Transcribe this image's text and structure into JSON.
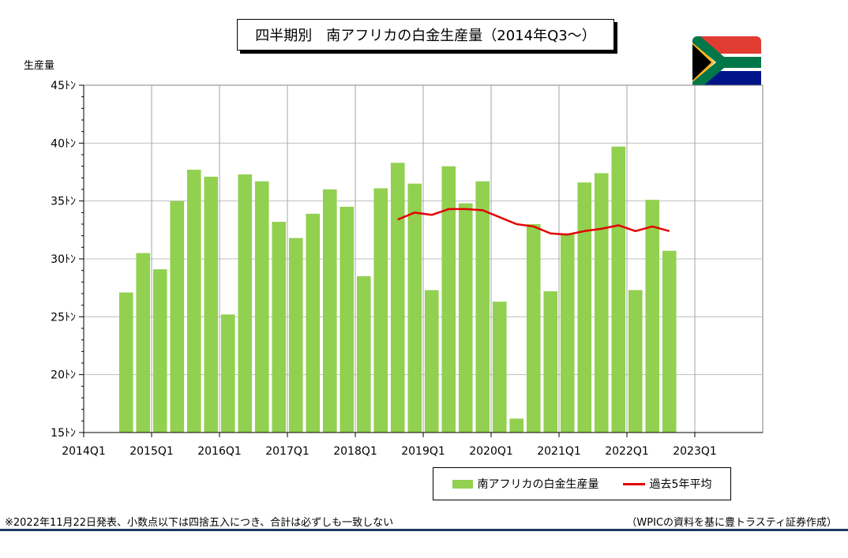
{
  "title": "四半期別　南アフリカの白金生産量（2014年Q3～）",
  "y_unit_label": "生産量",
  "legend": {
    "bar_label": "南アフリカの白金生産量",
    "line_label": "過去5年平均"
  },
  "footnote_left": "※2022年11月22日発表、小数点以下は四捨五入につき、合計は必ずしも一致しない",
  "footnote_right": "（WPICの資料を基に豊トラスティ証券作成）",
  "flag_icon": "south-africa-flag-icon",
  "colors": {
    "bar": "#92d050",
    "line": "#e30000",
    "grid": "#bfbfbf",
    "rule": "#1f3864"
  },
  "chart_data": {
    "type": "bar",
    "title": "四半期別　南アフリカの白金生産量（2014年Q3～）",
    "ylabel": "生産量",
    "y_unit": "ﾄﾝ",
    "ylim": [
      15,
      45
    ],
    "yticks": [
      15,
      20,
      25,
      30,
      35,
      40,
      45
    ],
    "ytick_labels": [
      "15ﾄﾝ",
      "20ﾄﾝ",
      "25ﾄﾝ",
      "30ﾄﾝ",
      "35ﾄﾝ",
      "40ﾄﾝ",
      "45ﾄﾝ"
    ],
    "xtick_labels": [
      "2014Q1",
      "2015Q1",
      "2016Q1",
      "2017Q1",
      "2018Q1",
      "2019Q1",
      "2020Q1",
      "2021Q1",
      "2022Q1",
      "2023Q1"
    ],
    "grid": true,
    "legend_position": "bottom-right",
    "categories": [
      "2014Q3",
      "2014Q4",
      "2015Q1",
      "2015Q2",
      "2015Q3",
      "2015Q4",
      "2016Q1",
      "2016Q2",
      "2016Q3",
      "2016Q4",
      "2017Q1",
      "2017Q2",
      "2017Q3",
      "2017Q4",
      "2018Q1",
      "2018Q2",
      "2018Q3",
      "2018Q4",
      "2019Q1",
      "2019Q2",
      "2019Q3",
      "2019Q4",
      "2020Q1",
      "2020Q2",
      "2020Q3",
      "2020Q4",
      "2021Q1",
      "2021Q2",
      "2021Q3",
      "2021Q4",
      "2022Q1",
      "2022Q2",
      "2022Q3"
    ],
    "series": [
      {
        "name": "南アフリカの白金生産量",
        "type": "bar",
        "values": [
          27.1,
          30.5,
          29.1,
          35.0,
          37.7,
          37.1,
          25.2,
          37.3,
          36.7,
          33.2,
          31.8,
          33.9,
          36.0,
          34.5,
          28.5,
          36.1,
          38.3,
          36.5,
          27.3,
          38.0,
          34.8,
          36.7,
          26.3,
          16.2,
          33.0,
          27.2,
          32.2,
          36.6,
          37.4,
          39.7,
          27.3,
          35.1,
          30.7
        ]
      },
      {
        "name": "過去5年平均",
        "type": "line",
        "values": [
          null,
          null,
          null,
          null,
          null,
          null,
          null,
          null,
          null,
          null,
          null,
          null,
          null,
          null,
          null,
          null,
          33.4,
          34.0,
          33.8,
          34.3,
          34.3,
          34.2,
          33.6,
          33.0,
          32.8,
          32.2,
          32.1,
          32.4,
          32.6,
          32.9,
          32.4,
          32.8,
          32.4
        ]
      }
    ]
  }
}
